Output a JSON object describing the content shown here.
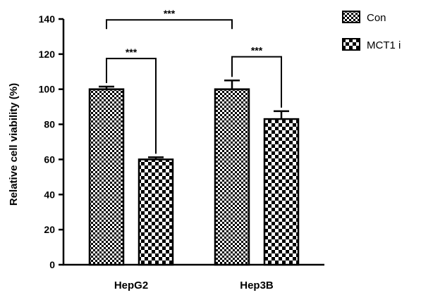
{
  "chart_data": {
    "type": "bar",
    "categories": [
      "HepG2",
      "Hep3B"
    ],
    "series": [
      {
        "name": "Con",
        "values": [
          100,
          100
        ],
        "errors": [
          1.5,
          5
        ],
        "pattern": "fine-check"
      },
      {
        "name": "MCT1 i",
        "values": [
          60,
          83
        ],
        "errors": [
          1.2,
          4.5
        ],
        "pattern": "coarse-check"
      }
    ],
    "ylabel": "Relative cell viability (%)",
    "xlabel": "",
    "ylim": [
      0,
      140
    ],
    "yticks": [
      0,
      20,
      40,
      60,
      80,
      100,
      120,
      140
    ],
    "grid": false,
    "legend_position": "top-right",
    "significance": [
      {
        "label": "***",
        "between": [
          [
            0,
            0
          ],
          [
            0,
            1
          ]
        ]
      },
      {
        "label": "***",
        "between": [
          [
            1,
            0
          ],
          [
            1,
            1
          ]
        ]
      },
      {
        "label": "***",
        "between": [
          [
            0,
            0
          ],
          [
            1,
            0
          ]
        ]
      }
    ]
  }
}
